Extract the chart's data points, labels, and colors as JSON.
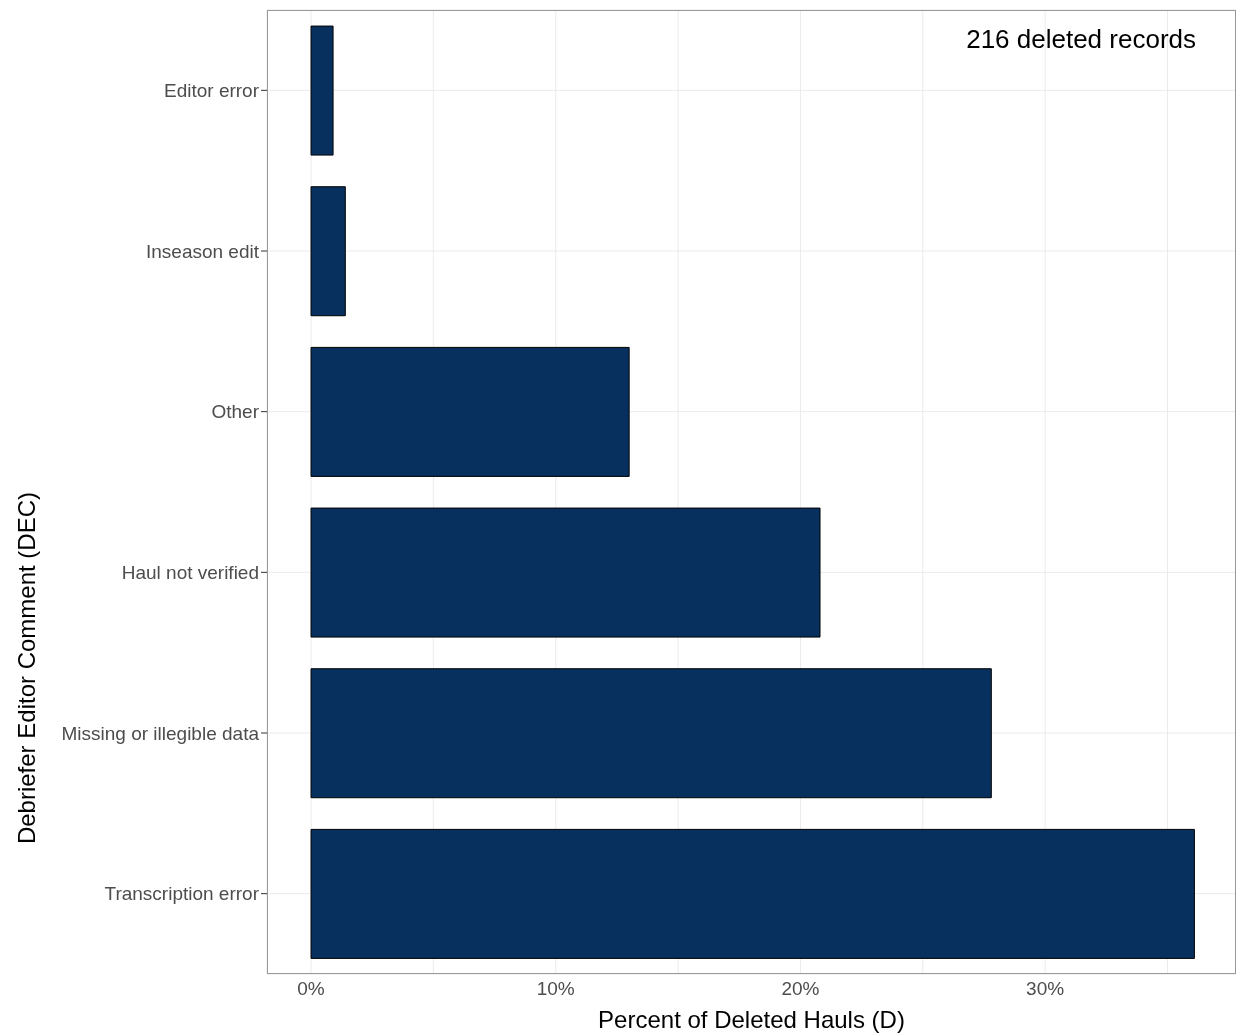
{
  "chart_data": {
    "type": "bar",
    "orientation": "horizontal",
    "categories": [
      "Editor error",
      "Inseason edit",
      "Other",
      "Haul not verified",
      "Missing or illegible data",
      "Transcription error"
    ],
    "values": [
      0.9,
      1.4,
      13.0,
      20.8,
      27.8,
      36.1
    ],
    "color": "#08305f",
    "xlabel": "Percent of Deleted Hauls (D)",
    "ylabel": "Debriefer Editor Comment (DEC)",
    "annotations": [
      "216 deleted records"
    ],
    "xlim": [
      -1.8,
      37.8
    ],
    "xticks": [
      {
        "value": 0,
        "label": "0%"
      },
      {
        "value": 5,
        "label": null
      },
      {
        "value": 10,
        "label": "10%"
      },
      {
        "value": 15,
        "label": null
      },
      {
        "value": 20,
        "label": "20%"
      },
      {
        "value": 25,
        "label": null
      },
      {
        "value": 30,
        "label": "30%"
      },
      {
        "value": 35,
        "label": null
      }
    ],
    "grid": true
  }
}
